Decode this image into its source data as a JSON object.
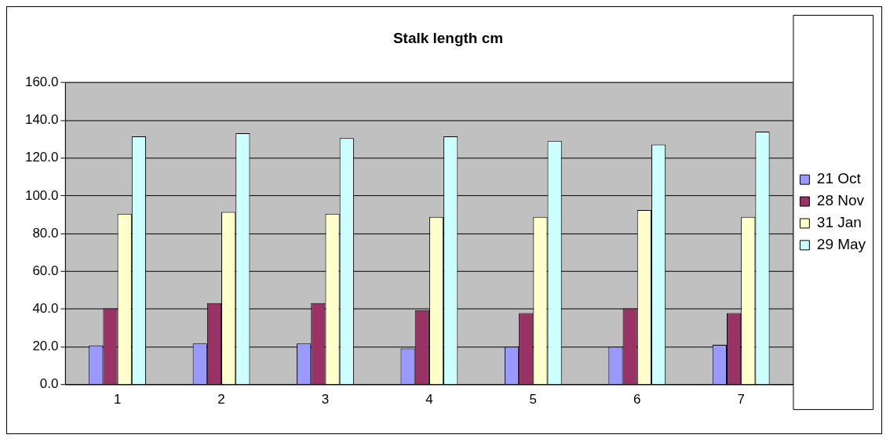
{
  "chart_data": {
    "type": "bar",
    "title": "Stalk length cm",
    "categories": [
      "1",
      "2",
      "3",
      "4",
      "5",
      "6",
      "7"
    ],
    "series": [
      {
        "name": "21 Oct",
        "color": "#9999ff",
        "values": [
          20.8,
          21.8,
          21.8,
          19.2,
          20.1,
          20.1,
          21.1
        ]
      },
      {
        "name": "28 Nov",
        "color": "#993366",
        "values": [
          40.4,
          43.2,
          43.2,
          39.5,
          37.9,
          40.4,
          37.9
        ]
      },
      {
        "name": "31 Jan",
        "color": "#ffffcc",
        "values": [
          90.5,
          91.5,
          90.5,
          88.9,
          88.9,
          92.5,
          88.9
        ]
      },
      {
        "name": "29 May",
        "color": "#ccffff",
        "values": [
          131.5,
          133.2,
          130.6,
          131.5,
          129.1,
          127.2,
          134
        ]
      }
    ],
    "ylim": [
      0,
      160
    ],
    "yticks": [
      {
        "value": 0,
        "label": "0.0"
      },
      {
        "value": 20,
        "label": "20.0"
      },
      {
        "value": 40,
        "label": "40.0"
      },
      {
        "value": 60,
        "label": "60.0"
      },
      {
        "value": 80,
        "label": "80.0"
      },
      {
        "value": 100,
        "label": "100.0"
      },
      {
        "value": 120,
        "label": "120.0"
      },
      {
        "value": 140,
        "label": "140.0"
      },
      {
        "value": 160,
        "label": "160.0"
      }
    ],
    "grid": "y",
    "legend": "right"
  }
}
